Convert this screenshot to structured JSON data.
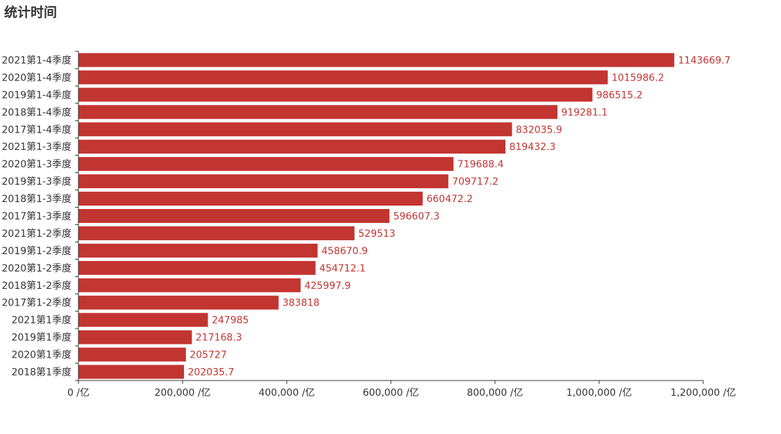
{
  "chart_data": {
    "type": "bar",
    "orientation": "horizontal",
    "title": "统计时间",
    "categories": [
      "2021第1-4季度",
      "2020第1-4季度",
      "2019第1-4季度",
      "2018第1-4季度",
      "2017第1-4季度",
      "2021第1-3季度",
      "2020第1-3季度",
      "2019第1-3季度",
      "2018第1-3季度",
      "2017第1-3季度",
      "2021第1-2季度",
      "2019第1-2季度",
      "2020第1-2季度",
      "2018第1-2季度",
      "2017第1-2季度",
      "2021第1季度",
      "2019第1季度",
      "2020第1季度",
      "2018第1季度"
    ],
    "values": [
      1143669.7,
      1015986.2,
      986515.2,
      919281.1,
      832035.9,
      819432.3,
      719688.4,
      709717.2,
      660472.2,
      596607.3,
      529513,
      458670.9,
      454712.1,
      425997.9,
      383818,
      247985,
      217168.3,
      205727,
      202035.7
    ],
    "data_labels": [
      "1143669.7",
      "1015986.2",
      "986515.2",
      "919281.1",
      "832035.9",
      "819432.3",
      "719688.4",
      "709717.2",
      "660472.2",
      "596607.3",
      "529513",
      "458670.9",
      "454712.1",
      "425997.9",
      "383818",
      "247985",
      "217168.3",
      "205727",
      "202035.7"
    ],
    "xlim": [
      0,
      1200000
    ],
    "x_ticks": [
      "0 /亿",
      "200,000 /亿",
      "400,000 /亿",
      "600,000 /亿",
      "800,000 /亿",
      "1,000,000 /亿",
      "1,200,000 /亿"
    ],
    "xlabel": "",
    "ylabel": "",
    "grid": false,
    "bar_color": "#c23531",
    "label_color": "#c23531"
  }
}
